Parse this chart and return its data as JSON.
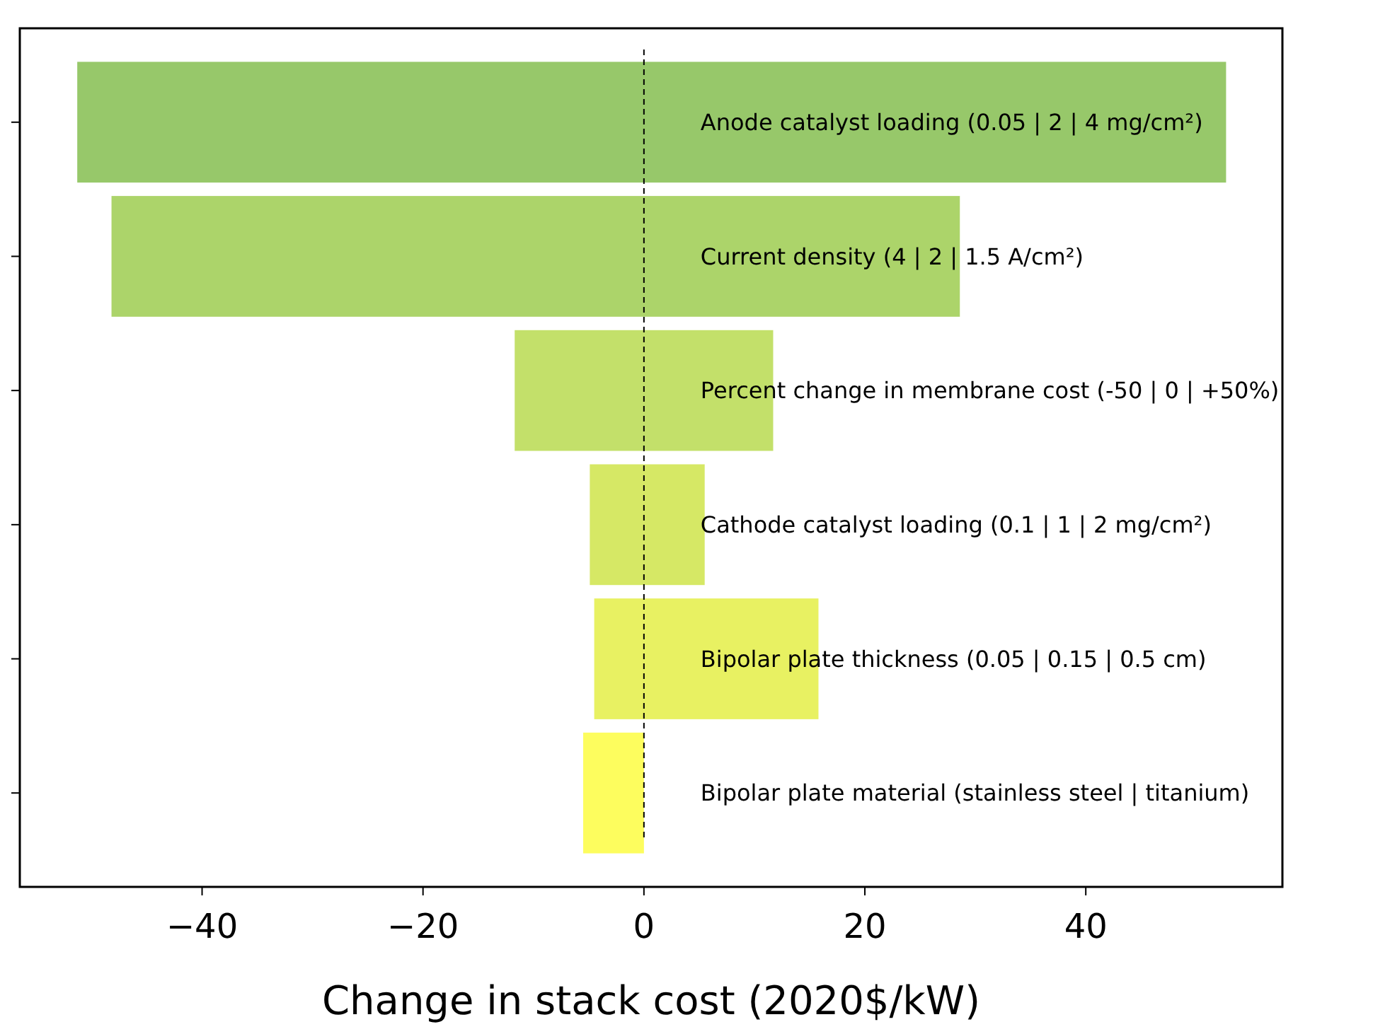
{
  "chart_data": {
    "type": "bar",
    "orientation": "horizontal",
    "xlabel": "Change in stack cost (2020$/kW)",
    "categories": [
      "Anode catalyst loading (0.05 | 2 | 4 mg/cm²)",
      "Current density (4 | 2 | 1.5 A/cm²)",
      "Percent change in membrane cost (-50 | 0 | +50%)",
      "Cathode catalyst loading (0.1 | 1 | 2 mg/cm²)",
      "Bipolar plate thickness (0.05 | 0.15 | 0.5 cm)",
      "Bipolar plate material (stainless steel | titanium)"
    ],
    "base": [
      -51.3,
      -48.2,
      -11.7,
      -4.9,
      -4.5,
      -5.5
    ],
    "values": [
      104,
      76.8,
      23.4,
      10.4,
      20.3,
      5.5
    ],
    "colors": [
      "#97c86a",
      "#acd46a",
      "#c3e06a",
      "#d6e865",
      "#e8f162",
      "#fdfd5e"
    ],
    "xlim": [
      -56.5,
      57.8
    ],
    "xticks": [
      -40,
      -20,
      0,
      20,
      40
    ],
    "ref_lines": [
      {
        "axis": "x",
        "value": 0,
        "color": "#000000",
        "line_style": "dashed"
      }
    ],
    "tick_labels": "x",
    "grid": false
  }
}
